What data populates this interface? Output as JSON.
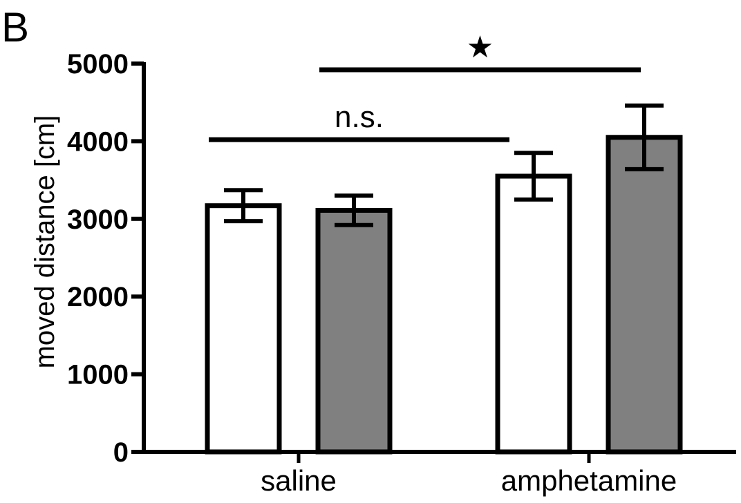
{
  "panel_label": "B",
  "chart_data": {
    "type": "bar",
    "title": "",
    "xlabel": "",
    "ylabel": "moved distance [cm]",
    "ylim": [
      0,
      5000
    ],
    "yticks": [
      0,
      1000,
      2000,
      3000,
      4000,
      5000
    ],
    "categories": [
      "saline",
      "amphetamine"
    ],
    "series": [
      {
        "color": "#ffffff",
        "values": [
          3170,
          3550
        ],
        "errors": [
          200,
          300
        ]
      },
      {
        "color": "#808080",
        "values": [
          3110,
          4050
        ],
        "errors": [
          190,
          410
        ]
      }
    ],
    "grid": false,
    "legend": "none",
    "annotations": [
      {
        "text": "n.s.",
        "bar_from": [
          0,
          0
        ],
        "bar_to": [
          1,
          0
        ],
        "y": 4020
      },
      {
        "text": "★",
        "bar_from": [
          0,
          1
        ],
        "bar_to": [
          1,
          1
        ],
        "y": 4920
      }
    ]
  }
}
